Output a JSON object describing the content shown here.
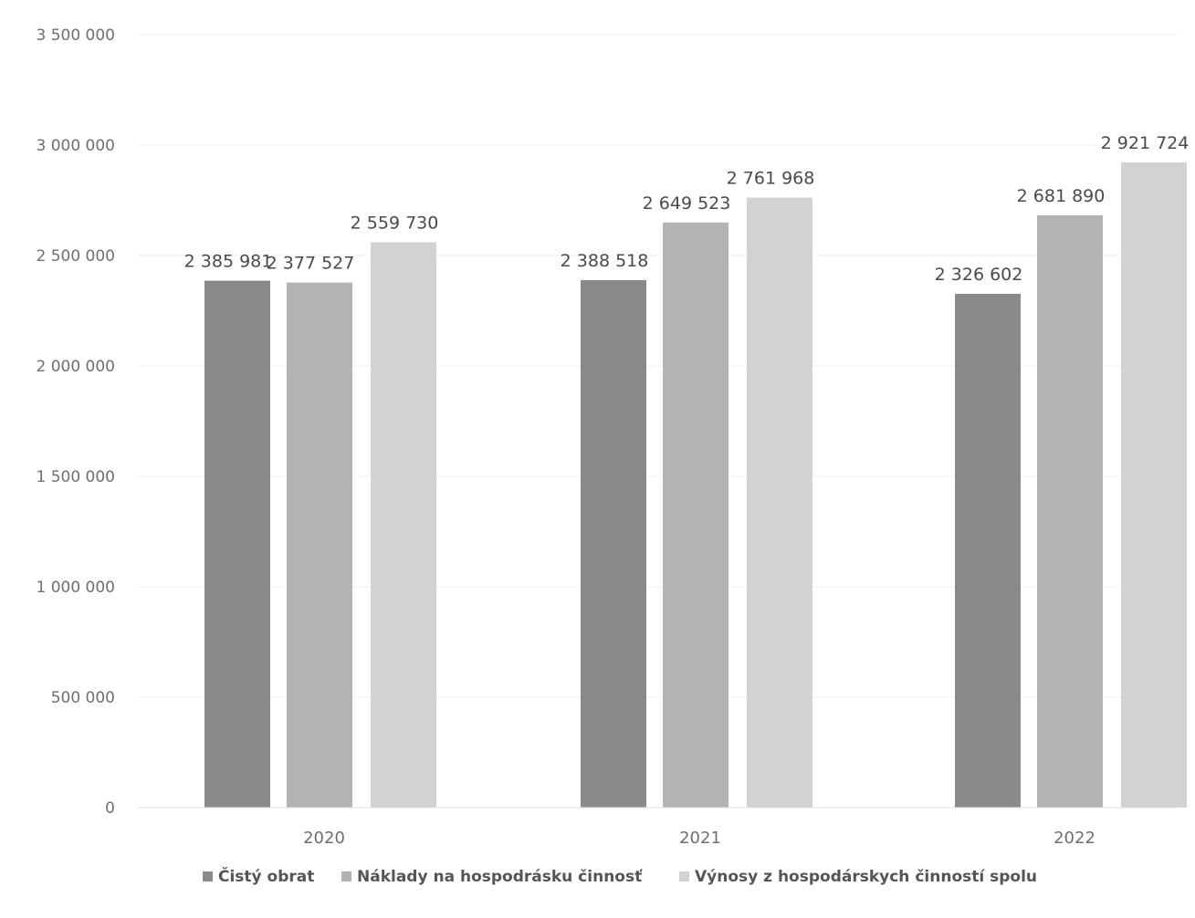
{
  "chart_data": {
    "type": "bar",
    "title": "",
    "xlabel": "",
    "ylabel": "",
    "ylim": [
      0,
      3500000
    ],
    "yticks": [
      0,
      500000,
      1000000,
      1500000,
      2000000,
      2500000,
      3000000,
      3500000
    ],
    "ytick_labels": [
      "0",
      "500 000",
      "1 000 000",
      "1 500 000",
      "2 000 000",
      "2 500 000",
      "3 000 000",
      "3 500 000"
    ],
    "categories": [
      "2020",
      "2021",
      "2022"
    ],
    "grid": true,
    "legend_position": "bottom",
    "series": [
      {
        "name": "Čistý obrat",
        "values": [
          2385981,
          2388518,
          2326602
        ],
        "labels": [
          "2 385 981",
          "2 388 518",
          "2 326 602"
        ],
        "color": "#8a8a8a"
      },
      {
        "name": "Náklady na hospodrásku činnosť",
        "values": [
          2377527,
          2649523,
          2681890
        ],
        "labels": [
          "2 377 527",
          "2 649 523",
          "2 681 890"
        ],
        "color": "#b3b3b3"
      },
      {
        "name": "Výnosy z hospodárskych činností spolu",
        "values": [
          2559730,
          2761968,
          2921724
        ],
        "labels": [
          "2 559 730",
          "2 761 968",
          "2 921 724"
        ],
        "color": "#d2d2d2"
      }
    ]
  }
}
